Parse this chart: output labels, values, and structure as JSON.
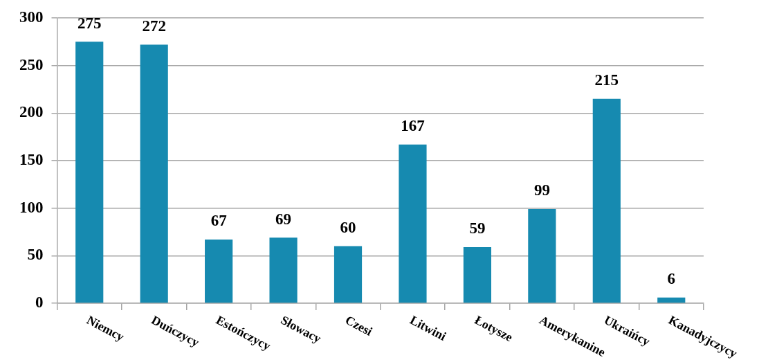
{
  "chart_data": {
    "type": "bar",
    "categories": [
      "Niemcy",
      "Duńczycy",
      "Estończycy",
      "Słowacy",
      "Czesi",
      "Litwini",
      "Łotysze",
      "Amerykanine",
      "Ukraińcy",
      "Kanadyjczycy"
    ],
    "values": [
      275,
      272,
      67,
      69,
      60,
      167,
      59,
      99,
      215,
      6
    ],
    "color": "#168ab0",
    "ylim": [
      0,
      300
    ],
    "yticks": [
      0,
      50,
      100,
      150,
      200,
      250,
      300
    ],
    "grid": "y",
    "data_labels": true
  }
}
